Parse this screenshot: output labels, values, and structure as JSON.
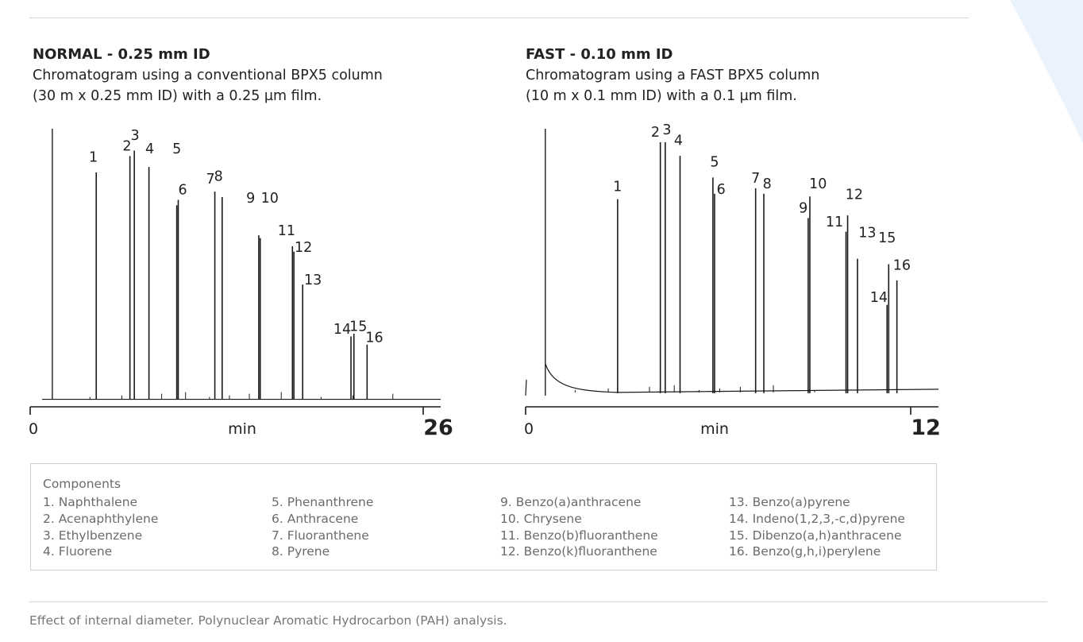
{
  "colors": {
    "trace": "#1a1a1a",
    "axis": "#1a1a1a",
    "text": "#222222",
    "muted": "#6b6b6b",
    "rule": "#d4d4d4",
    "decoration": "#eaf3fc"
  },
  "chart_data": [
    {
      "type": "line",
      "title": "NORMAL - 0.25 mm ID",
      "subtitle": [
        "Chromatogram using a conventional BPX5 column",
        "(30 m x 0.25 mm ID) with a 0.25 µm film."
      ],
      "xlabel": "min",
      "xlim": [
        0,
        26
      ],
      "x_tick_labels": [
        "0",
        "26"
      ],
      "ylim": [
        0,
        100
      ],
      "grid": false,
      "baseline": 1,
      "solvent_peak": {
        "x": 0.7,
        "y": 100
      },
      "peaks": [
        {
          "label": "1",
          "x": 3.7,
          "y": 84
        },
        {
          "label": "2",
          "x": 6.0,
          "y": 90
        },
        {
          "label": "3",
          "x": 6.3,
          "y": 92
        },
        {
          "label": "4",
          "x": 7.3,
          "y": 86
        },
        {
          "label": "5",
          "x": 9.2,
          "y": 72
        },
        {
          "label": "6",
          "x": 9.3,
          "y": 74
        },
        {
          "label": "7",
          "x": 11.8,
          "y": 77
        },
        {
          "label": "8",
          "x": 12.3,
          "y": 75
        },
        {
          "label": "9",
          "x": 14.8,
          "y": 61
        },
        {
          "label": "10",
          "x": 14.9,
          "y": 60
        },
        {
          "label": "11",
          "x": 17.1,
          "y": 57
        },
        {
          "label": "12",
          "x": 17.2,
          "y": 55
        },
        {
          "label": "13",
          "x": 17.8,
          "y": 43
        },
        {
          "label": "14",
          "x": 21.1,
          "y": 24
        },
        {
          "label": "15",
          "x": 21.3,
          "y": 25
        },
        {
          "label": "16",
          "x": 22.2,
          "y": 21
        }
      ],
      "peak_label_positions": [
        {
          "text": "1",
          "x": 3.5,
          "y": 88
        },
        {
          "text": "2",
          "x": 5.8,
          "y": 92
        },
        {
          "text": "3",
          "x": 6.35,
          "y": 96
        },
        {
          "text": "4",
          "x": 7.35,
          "y": 91
        },
        {
          "text": "5",
          "x": 9.2,
          "y": 91
        },
        {
          "text": "6",
          "x": 9.6,
          "y": 76
        },
        {
          "text": "7",
          "x": 11.5,
          "y": 80
        },
        {
          "text": "8",
          "x": 12.05,
          "y": 81
        },
        {
          "text": "9",
          "x": 14.25,
          "y": 73
        },
        {
          "text": "10",
          "x": 15.55,
          "y": 73
        },
        {
          "text": "11",
          "x": 16.7,
          "y": 61
        },
        {
          "text": "12",
          "x": 17.85,
          "y": 55
        },
        {
          "text": "13",
          "x": 18.5,
          "y": 43
        },
        {
          "text": "14",
          "x": 20.5,
          "y": 25
        },
        {
          "text": "15",
          "x": 21.6,
          "y": 26
        },
        {
          "text": "16",
          "x": 22.7,
          "y": 22
        }
      ]
    },
    {
      "type": "line",
      "title": "FAST - 0.10 mm ID",
      "subtitle": [
        "Chromatogram using a FAST BPX5 column",
        "(10 m x 0.1 mm ID) with a 0.1 µm film."
      ],
      "xlabel": "min",
      "xlim": [
        0,
        12
      ],
      "x_tick_labels": [
        "0",
        "12"
      ],
      "ylim": [
        0,
        100
      ],
      "grid": false,
      "baseline": 1.5,
      "solvent_peak": {
        "x": 0.6,
        "y": 100
      },
      "peaks": [
        {
          "label": "1",
          "x": 2.8,
          "y": 74
        },
        {
          "label": "2",
          "x": 4.1,
          "y": 95
        },
        {
          "label": "3",
          "x": 4.25,
          "y": 95
        },
        {
          "label": "4",
          "x": 4.7,
          "y": 90
        },
        {
          "label": "5",
          "x": 5.7,
          "y": 82
        },
        {
          "label": "6",
          "x": 5.75,
          "y": 76
        },
        {
          "label": "7",
          "x": 7.0,
          "y": 78
        },
        {
          "label": "8",
          "x": 7.25,
          "y": 76
        },
        {
          "label": "9",
          "x": 8.6,
          "y": 67
        },
        {
          "label": "10",
          "x": 8.65,
          "y": 75
        },
        {
          "label": "11",
          "x": 9.75,
          "y": 62
        },
        {
          "label": "12",
          "x": 9.8,
          "y": 68
        },
        {
          "label": "13",
          "x": 10.1,
          "y": 52
        },
        {
          "label": "14",
          "x": 11.0,
          "y": 35
        },
        {
          "label": "15",
          "x": 11.05,
          "y": 50
        },
        {
          "label": "16",
          "x": 11.3,
          "y": 44
        }
      ],
      "peak_label_positions": [
        {
          "text": "1",
          "x": 2.8,
          "y": 77
        },
        {
          "text": "2",
          "x": 3.95,
          "y": 97
        },
        {
          "text": "3",
          "x": 4.3,
          "y": 98
        },
        {
          "text": "4",
          "x": 4.65,
          "y": 94
        },
        {
          "text": "5",
          "x": 5.75,
          "y": 86
        },
        {
          "text": "6",
          "x": 5.95,
          "y": 76
        },
        {
          "text": "7",
          "x": 7.0,
          "y": 80
        },
        {
          "text": "8",
          "x": 7.35,
          "y": 78
        },
        {
          "text": "9",
          "x": 8.45,
          "y": 69
        },
        {
          "text": "10",
          "x": 8.9,
          "y": 78
        },
        {
          "text": "11",
          "x": 9.4,
          "y": 64
        },
        {
          "text": "12",
          "x": 10.0,
          "y": 74
        },
        {
          "text": "13",
          "x": 10.4,
          "y": 60
        },
        {
          "text": "14",
          "x": 10.75,
          "y": 36
        },
        {
          "text": "15",
          "x": 11.0,
          "y": 58
        },
        {
          "text": "16",
          "x": 11.45,
          "y": 48
        }
      ]
    }
  ],
  "components": {
    "title": "Components",
    "columns": [
      [
        "1. Naphthalene",
        "2. Acenaphthylene",
        "3. Ethylbenzene",
        "4. Fluorene"
      ],
      [
        "5. Phenanthrene",
        "6. Anthracene",
        "7. Fluoranthene",
        "8. Pyrene"
      ],
      [
        "9. Benzo(a)anthracene",
        "10. Chrysene",
        "11. Benzo(b)fluoranthene",
        "12. Benzo(k)fluoranthene"
      ],
      [
        "13. Benzo(a)pyrene",
        "14. Indeno(1,2,3,-c,d)pyrene",
        "15. Dibenzo(a,h)anthracene",
        "16. Benzo(g,h,i)perylene"
      ]
    ]
  },
  "caption": "Effect of internal diameter. Polynuclear Aromatic Hydrocarbon (PAH) analysis."
}
